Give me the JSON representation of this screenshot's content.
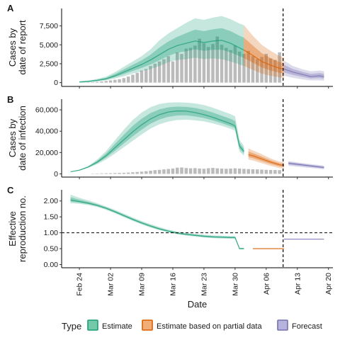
{
  "chart_data": [
    {
      "panel": "A",
      "type": "area",
      "ylabel": "Cases by\ndate of report",
      "ylim": [
        -500,
        9800
      ],
      "yticks": [
        0,
        2500,
        5000,
        7500
      ],
      "ytick_labels": [
        "0",
        "2,500",
        "5,000",
        "7,500"
      ],
      "xlim": [
        -4,
        57
      ],
      "xticks": [
        0,
        7,
        14,
        21,
        28,
        35,
        42,
        49,
        56
      ],
      "xtick_labels": [
        "Feb 24",
        "Mar 02",
        "Mar 09",
        "Mar 16",
        "Mar 23",
        "Mar 30",
        "Apr 06",
        "Apr 13",
        "Apr 20"
      ],
      "vline_x": 45.8,
      "bars": {
        "x": [
          1,
          2,
          3,
          4,
          5,
          6,
          7,
          8,
          9,
          10,
          11,
          12,
          13,
          14,
          15,
          16,
          17,
          18,
          19,
          20,
          21,
          22,
          23,
          24,
          25,
          26,
          27,
          28,
          29,
          30,
          31,
          32,
          33,
          34,
          35,
          36,
          37,
          38,
          39,
          40,
          41,
          42,
          43,
          44,
          45
        ],
        "values": [
          20,
          40,
          60,
          100,
          150,
          220,
          300,
          380,
          450,
          600,
          800,
          1050,
          1300,
          1600,
          1800,
          2200,
          2500,
          2800,
          3100,
          3500,
          2800,
          4000,
          3800,
          4500,
          4600,
          4900,
          5800,
          5200,
          4700,
          5100,
          6100,
          5000,
          4600,
          4300,
          4900,
          4100,
          3800,
          4200,
          3500,
          3100,
          3400,
          3800,
          3200,
          3000,
          4000
        ]
      },
      "series": [
        {
          "name": "Estimate",
          "x": [
            0,
            2,
            4,
            6,
            8,
            10,
            12,
            14,
            16,
            18,
            20,
            22,
            24,
            26,
            28,
            30,
            32,
            34,
            36,
            37
          ],
          "median": [
            80,
            150,
            300,
            500,
            900,
            1400,
            1900,
            2400,
            3000,
            3700,
            4400,
            4900,
            5200,
            5500,
            5300,
            5500,
            5600,
            5200,
            4600,
            4300
          ],
          "lower": [
            20,
            60,
            150,
            300,
            550,
            850,
            1200,
            1500,
            1800,
            2200,
            2700,
            3000,
            3100,
            3300,
            3100,
            3200,
            3100,
            2800,
            2400,
            2200
          ],
          "upper": [
            200,
            300,
            500,
            800,
            1400,
            2100,
            2800,
            3500,
            4400,
            5600,
            6500,
            7200,
            7900,
            8500,
            8300,
            8600,
            8800,
            8400,
            7800,
            7600
          ]
        },
        {
          "name": "Estimate based on partial data",
          "x": [
            37,
            39,
            41,
            43,
            45,
            46
          ],
          "median": [
            4300,
            3600,
            2800,
            2300,
            1900,
            1800
          ],
          "lower": [
            2200,
            1700,
            1200,
            900,
            700,
            600
          ],
          "upper": [
            7600,
            6200,
            5000,
            4200,
            3500,
            3300
          ]
        },
        {
          "name": "Forecast",
          "x": [
            46,
            48,
            50,
            52,
            54,
            55
          ],
          "median": [
            1800,
            1400,
            1100,
            800,
            900,
            800
          ],
          "lower": [
            900,
            650,
            450,
            300,
            300,
            250
          ],
          "upper": [
            2900,
            2200,
            1800,
            1500,
            1600,
            1500
          ]
        }
      ]
    },
    {
      "panel": "B",
      "type": "area",
      "ylabel": "Cases by\ndate of infection",
      "ylim": [
        -3000,
        70000
      ],
      "yticks": [
        0,
        20000,
        40000,
        60000
      ],
      "ytick_labels": [
        "0",
        "20,000",
        "40,000",
        "60,000"
      ],
      "xlim": [
        -4,
        57
      ],
      "xticks": [
        0,
        7,
        14,
        21,
        28,
        35,
        42,
        49,
        56
      ],
      "xtick_labels": [
        "Feb 24",
        "Mar 02",
        "Mar 09",
        "Mar 16",
        "Mar 23",
        "Mar 30",
        "Apr 06",
        "Apr 13",
        "Apr 20"
      ],
      "vline_x": 45.8,
      "bars": {
        "x": [
          3,
          4,
          5,
          6,
          7,
          8,
          9,
          10,
          11,
          12,
          13,
          14,
          15,
          16,
          17,
          18,
          19,
          20,
          21,
          22,
          23,
          24,
          25,
          26,
          27,
          28,
          29,
          30,
          31,
          32,
          33,
          34,
          35,
          36,
          37,
          38,
          39,
          40,
          41,
          42,
          43,
          44,
          45
        ],
        "values": [
          300,
          400,
          500,
          600,
          700,
          800,
          900,
          1000,
          1200,
          1500,
          1800,
          2100,
          2500,
          3000,
          3500,
          3800,
          4200,
          4600,
          5000,
          5800,
          6000,
          5500,
          5200,
          5400,
          5000,
          4800,
          5300,
          5600,
          5200,
          5000,
          4800,
          5000,
          5200,
          5000,
          4700,
          4500,
          4300,
          4200,
          4000,
          3800,
          3700,
          3600,
          3500
        ]
      },
      "series": [
        {
          "name": "Estimate",
          "x": [
            -2,
            0,
            2,
            4,
            6,
            8,
            10,
            12,
            14,
            16,
            18,
            20,
            22,
            24,
            26,
            28,
            30,
            32,
            34,
            35,
            36,
            37
          ],
          "median": [
            2000,
            3500,
            6500,
            11000,
            17000,
            24500,
            32000,
            39500,
            46000,
            51500,
            55500,
            58000,
            59000,
            58800,
            57500,
            55500,
            53000,
            50000,
            47000,
            45000,
            26000,
            21000
          ],
          "lower": [
            1900,
            3100,
            5600,
            9000,
            13500,
            19000,
            25000,
            31000,
            37000,
            42500,
            46500,
            49000,
            50500,
            50800,
            50200,
            49200,
            47300,
            45000,
            42300,
            40500,
            21000,
            17000
          ],
          "upper": [
            2100,
            3900,
            7400,
            13500,
            21500,
            31500,
            41500,
            50500,
            57500,
            62500,
            65500,
            66800,
            67000,
            66800,
            66000,
            64500,
            62000,
            59000,
            56000,
            54000,
            32000,
            26000
          ]
        },
        {
          "name": "Estimate based on partial data",
          "x": [
            38,
            39,
            41,
            43,
            45,
            46
          ],
          "median": [
            18000,
            17000,
            14000,
            11000,
            8500,
            8000
          ],
          "lower": [
            13500,
            12500,
            10000,
            7500,
            5500,
            5200
          ],
          "upper": [
            24000,
            22000,
            18500,
            14500,
            11500,
            11000
          ]
        },
        {
          "name": "Forecast",
          "x": [
            47,
            49,
            51,
            53,
            55
          ],
          "median": [
            10000,
            9000,
            8000,
            7000,
            6000
          ],
          "lower": [
            7500,
            6700,
            5900,
            5100,
            4300
          ],
          "upper": [
            12000,
            10800,
            9700,
            8700,
            7800
          ]
        }
      ]
    },
    {
      "panel": "C",
      "type": "area",
      "ylabel": "Effective\nreproduction no.",
      "ylim": [
        -0.1,
        2.35
      ],
      "yticks": [
        0,
        0.5,
        1,
        1.5,
        2
      ],
      "ytick_labels": [
        "0.00",
        "0.50",
        "1.00",
        "1.50",
        "2.00"
      ],
      "xlim": [
        -4,
        57
      ],
      "xticks": [
        0,
        7,
        14,
        21,
        28,
        35,
        42,
        49,
        56
      ],
      "xtick_labels": [
        "Feb 24",
        "Mar 02",
        "Mar 09",
        "Mar 16",
        "Mar 23",
        "Mar 30",
        "Apr 06",
        "Apr 13",
        "Apr 20"
      ],
      "xlabel": "Date",
      "vline_x": 45.8,
      "hline_y": 1,
      "series": [
        {
          "name": "Estimate",
          "x": [
            -2,
            0,
            2,
            4,
            6,
            8,
            10,
            12,
            14,
            16,
            18,
            20,
            22,
            24,
            26,
            28,
            30,
            32,
            34,
            35,
            36,
            37
          ],
          "median": [
            2.03,
            1.98,
            1.93,
            1.86,
            1.77,
            1.66,
            1.54,
            1.42,
            1.31,
            1.21,
            1.12,
            1.05,
            0.99,
            0.95,
            0.92,
            0.89,
            0.87,
            0.86,
            0.85,
            0.85,
            0.5,
            0.5
          ],
          "lower": [
            1.93,
            1.91,
            1.87,
            1.81,
            1.72,
            1.61,
            1.49,
            1.37,
            1.26,
            1.16,
            1.08,
            1.01,
            0.95,
            0.91,
            0.88,
            0.85,
            0.83,
            0.82,
            0.81,
            0.81,
            0.48,
            0.48
          ],
          "upper": [
            2.2,
            2.1,
            2.02,
            1.93,
            1.83,
            1.72,
            1.6,
            1.48,
            1.37,
            1.27,
            1.18,
            1.1,
            1.04,
            1.0,
            0.97,
            0.94,
            0.92,
            0.91,
            0.9,
            0.9,
            0.53,
            0.53
          ]
        },
        {
          "name": "Estimate based on partial data",
          "x": [
            39,
            46
          ],
          "median": [
            0.5,
            0.5
          ],
          "lower": [
            0.49,
            0.49
          ],
          "upper": [
            0.51,
            0.51
          ]
        },
        {
          "name": "Forecast",
          "x": [
            46,
            55
          ],
          "median": [
            0.8,
            0.8
          ],
          "lower": [
            0.79,
            0.79
          ],
          "upper": [
            0.81,
            0.81
          ]
        }
      ]
    }
  ],
  "legend": {
    "title": "Type",
    "placement": "bottom",
    "entries": [
      {
        "label": "Estimate",
        "fill": "#5cbf9a",
        "stroke": "#1b9e77"
      },
      {
        "label": "Estimate based on partial data",
        "fill": "#f0a060",
        "stroke": "#d95f02"
      },
      {
        "label": "Forecast",
        "fill": "#a9a6d6",
        "stroke": "#7570b3"
      }
    ]
  },
  "colors": {
    "Estimate": "#1b9e77",
    "Estimate based on partial data": "#d95f02",
    "Forecast": "#7570b3",
    "bars": "#b4b4b4"
  }
}
